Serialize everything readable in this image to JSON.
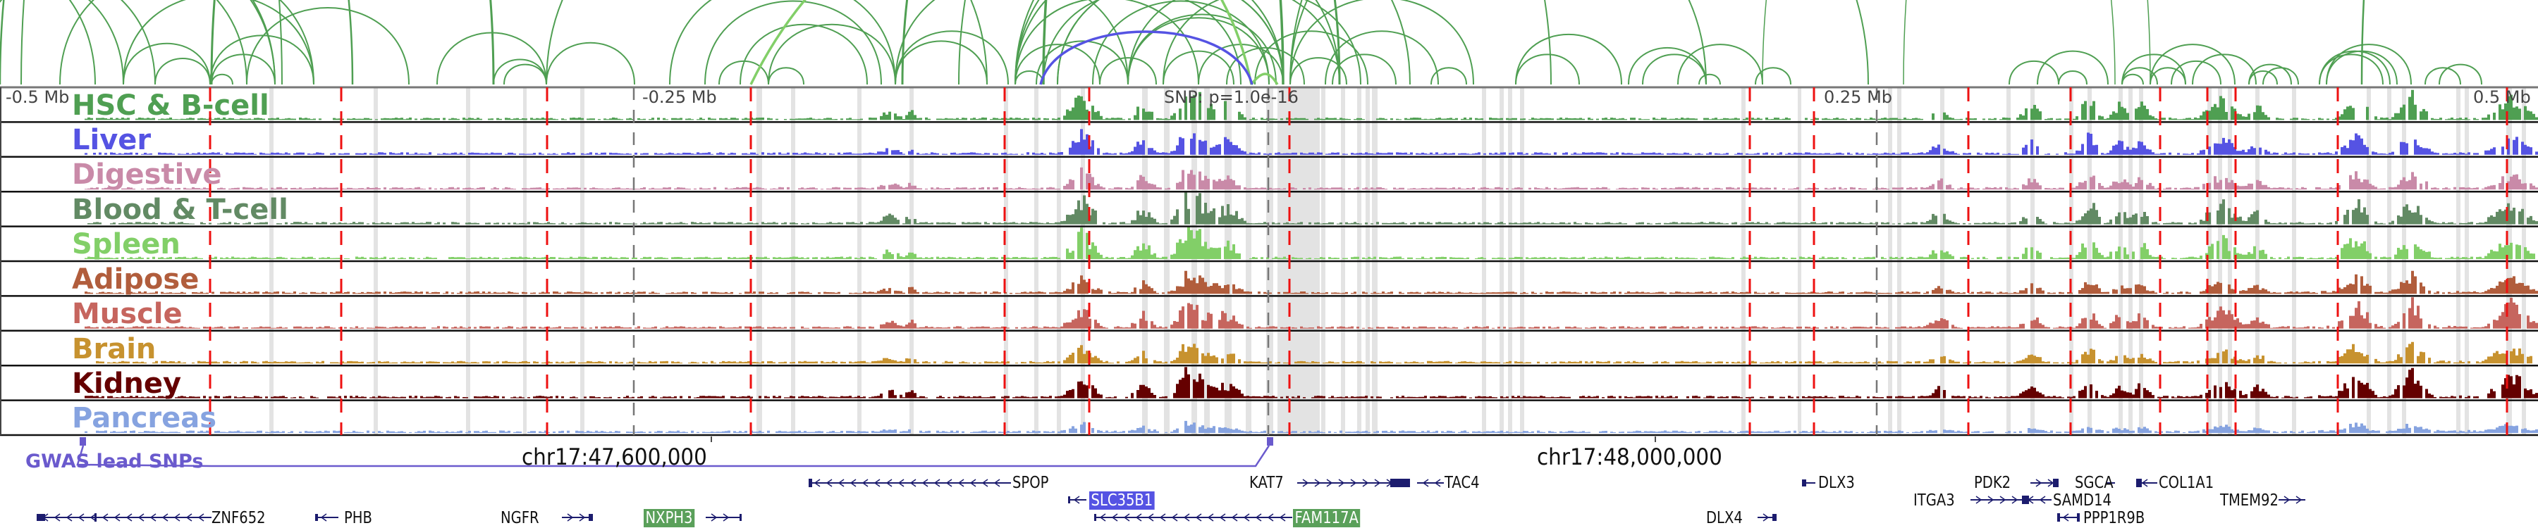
{
  "axis": {
    "offset_labels": [
      "-0.5 Mb",
      "-0.25 Mb",
      "0.25 Mb",
      "0.5 Mb"
    ],
    "snp_label": "SNP: p=1.0e-16",
    "coordinates": [
      "chr17:47,600,000",
      "chr17:48,000,000"
    ]
  },
  "tracks": [
    {
      "name": "HSC & B-cell",
      "color": "#4f9f52"
    },
    {
      "name": "Liver",
      "color": "#5553e3"
    },
    {
      "name": "Digestive",
      "color": "#c98aa8"
    },
    {
      "name": "Blood & T-cell",
      "color": "#628a64"
    },
    {
      "name": "Spleen",
      "color": "#82cf68"
    },
    {
      "name": "Adipose",
      "color": "#b15d3c"
    },
    {
      "name": "Muscle",
      "color": "#c6655e"
    },
    {
      "name": "Brain",
      "color": "#c7922f"
    },
    {
      "name": "Kidney",
      "color": "#650000"
    },
    {
      "name": "Pancreas",
      "color": "#86a3e0"
    }
  ],
  "gwas": {
    "label": "GWAS lead SNPs",
    "color": "#6a5acd"
  },
  "genes": [
    {
      "name": "ZNF652",
      "strand": "-"
    },
    {
      "name": "PHB",
      "strand": "-"
    },
    {
      "name": "NGFR",
      "strand": "+"
    },
    {
      "name": "NXPH3",
      "strand": "+",
      "highlight": "#5aa05a"
    },
    {
      "name": "SPOP",
      "strand": "-"
    },
    {
      "name": "SLC35B1",
      "strand": "-",
      "highlight": "#5553e3"
    },
    {
      "name": "FAM117A",
      "strand": "-",
      "highlight": "#5aa05a"
    },
    {
      "name": "KAT7",
      "strand": "+"
    },
    {
      "name": "TAC4",
      "strand": "-"
    },
    {
      "name": "DLX3",
      "strand": "-"
    },
    {
      "name": "DLX4",
      "strand": "+"
    },
    {
      "name": "ITGA3",
      "strand": "+"
    },
    {
      "name": "PDK2",
      "strand": "+"
    },
    {
      "name": "SAMD14",
      "strand": "-"
    },
    {
      "name": "PPP1R9B",
      "strand": "-"
    },
    {
      "name": "SGCA",
      "strand": "+"
    },
    {
      "name": "COL1A1",
      "strand": "-"
    },
    {
      "name": "TMEM92",
      "strand": "+"
    }
  ],
  "colors": {
    "snp_line": "#ee1111",
    "peak_band": "#e3e3e3",
    "arc": "#4f9f52",
    "arc_light": "#82cf68",
    "arc_highlight": "#5553e3",
    "gene": "#1c1c6e"
  }
}
